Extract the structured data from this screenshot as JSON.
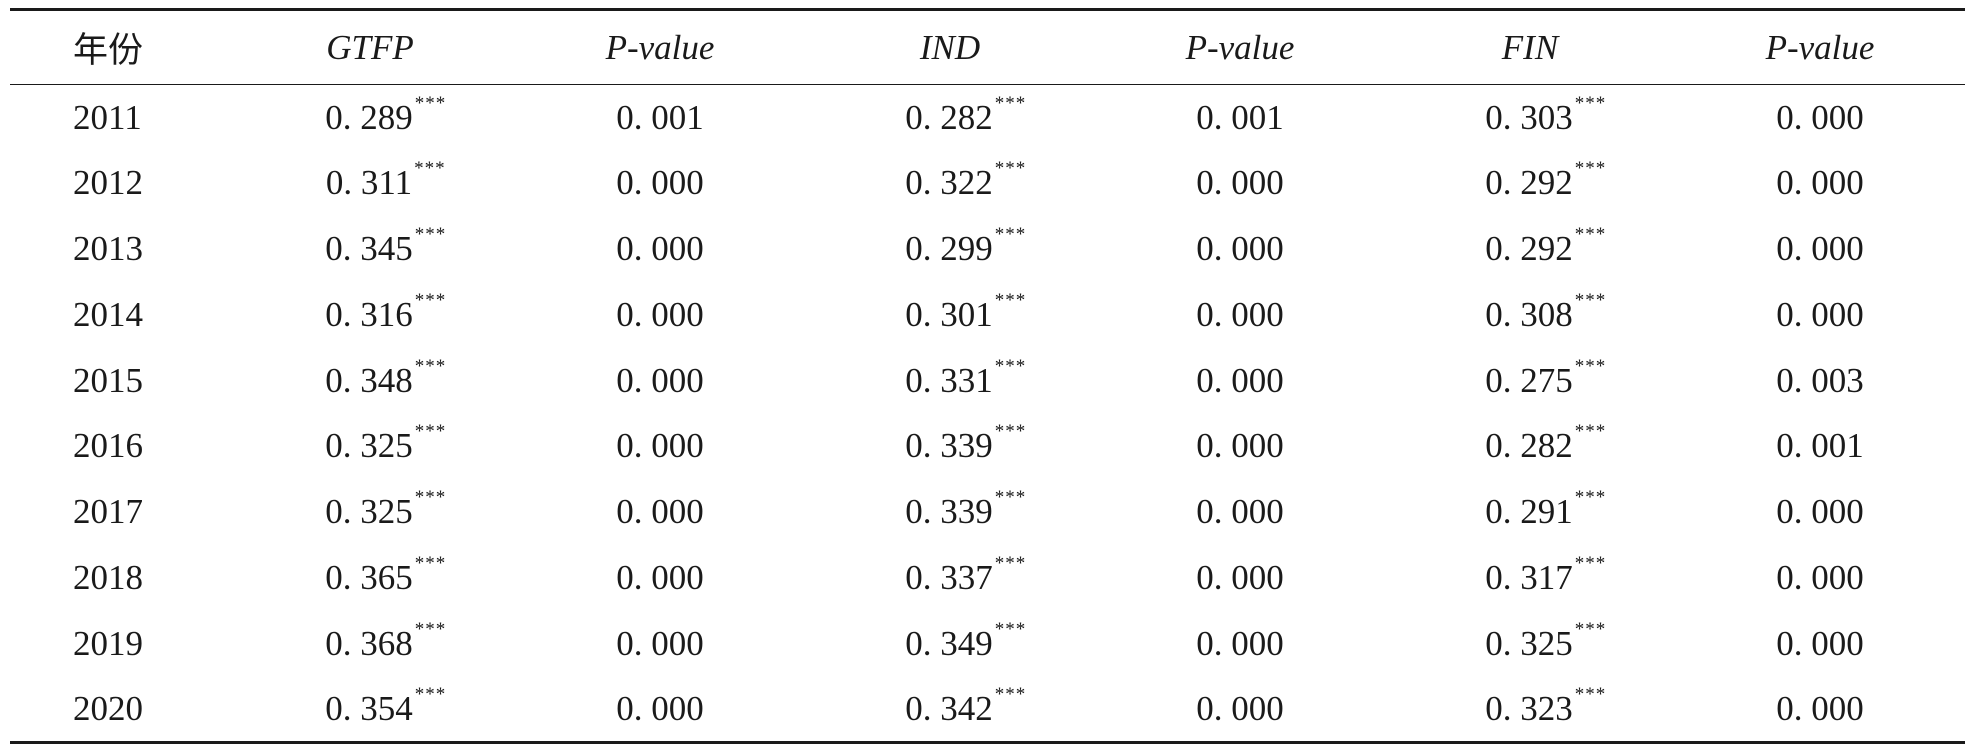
{
  "table": {
    "headers": [
      "年份",
      "GTFP",
      "P-value",
      "IND",
      "P-value",
      "FIN",
      "P-value"
    ],
    "rows": [
      {
        "year": "2011",
        "gtfp": "0. 289",
        "gtfp_sig": "***",
        "gtfp_p": "0. 001",
        "ind": "0. 282",
        "ind_sig": "***",
        "ind_p": "0. 001",
        "fin": "0. 303",
        "fin_sig": "***",
        "fin_p": "0. 000"
      },
      {
        "year": "2012",
        "gtfp": "0. 311",
        "gtfp_sig": "***",
        "gtfp_p": "0. 000",
        "ind": "0. 322",
        "ind_sig": "***",
        "ind_p": "0. 000",
        "fin": "0. 292",
        "fin_sig": "***",
        "fin_p": "0. 000"
      },
      {
        "year": "2013",
        "gtfp": "0. 345",
        "gtfp_sig": "***",
        "gtfp_p": "0. 000",
        "ind": "0. 299",
        "ind_sig": "***",
        "ind_p": "0. 000",
        "fin": "0. 292",
        "fin_sig": "***",
        "fin_p": "0. 000"
      },
      {
        "year": "2014",
        "gtfp": "0. 316",
        "gtfp_sig": "***",
        "gtfp_p": "0. 000",
        "ind": "0. 301",
        "ind_sig": "***",
        "ind_p": "0. 000",
        "fin": "0. 308",
        "fin_sig": "***",
        "fin_p": "0. 000"
      },
      {
        "year": "2015",
        "gtfp": "0. 348",
        "gtfp_sig": "***",
        "gtfp_p": "0. 000",
        "ind": "0. 331",
        "ind_sig": "***",
        "ind_p": "0. 000",
        "fin": "0. 275",
        "fin_sig": "***",
        "fin_p": "0. 003"
      },
      {
        "year": "2016",
        "gtfp": "0. 325",
        "gtfp_sig": "***",
        "gtfp_p": "0. 000",
        "ind": "0. 339",
        "ind_sig": "***",
        "ind_p": "0. 000",
        "fin": "0. 282",
        "fin_sig": "***",
        "fin_p": "0. 001"
      },
      {
        "year": "2017",
        "gtfp": "0. 325",
        "gtfp_sig": "***",
        "gtfp_p": "0. 000",
        "ind": "0. 339",
        "ind_sig": "***",
        "ind_p": "0. 000",
        "fin": "0. 291",
        "fin_sig": "***",
        "fin_p": "0. 000"
      },
      {
        "year": "2018",
        "gtfp": "0. 365",
        "gtfp_sig": "***",
        "gtfp_p": "0. 000",
        "ind": "0. 337",
        "ind_sig": "***",
        "ind_p": "0. 000",
        "fin": "0. 317",
        "fin_sig": "***",
        "fin_p": "0. 000"
      },
      {
        "year": "2019",
        "gtfp": "0. 368",
        "gtfp_sig": "***",
        "gtfp_p": "0. 000",
        "ind": "0. 349",
        "ind_sig": "***",
        "ind_p": "0. 000",
        "fin": "0. 325",
        "fin_sig": "***",
        "fin_p": "0. 000"
      },
      {
        "year": "2020",
        "gtfp": "0. 354",
        "gtfp_sig": "***",
        "gtfp_p": "0. 000",
        "ind": "0. 342",
        "ind_sig": "***",
        "ind_p": "0. 000",
        "fin": "0. 323",
        "fin_sig": "***",
        "fin_p": "0. 000"
      }
    ]
  }
}
